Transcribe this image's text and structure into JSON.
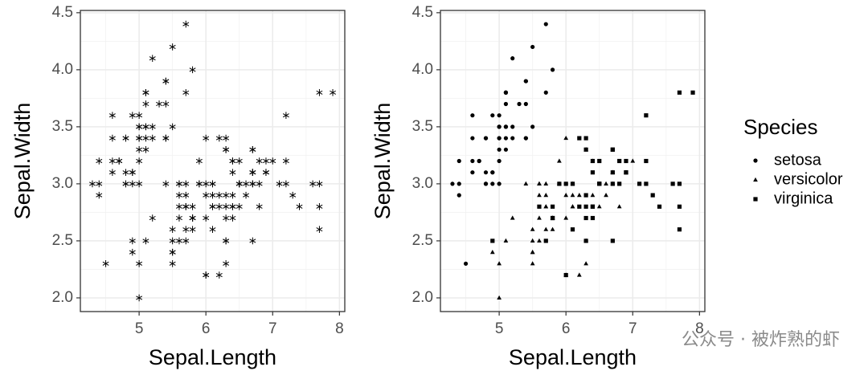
{
  "chart_data": [
    {
      "type": "scatter",
      "x_label": "Sepal.Length",
      "y_label": "Sepal.Width",
      "xlim": [
        4.12,
        8.08
      ],
      "ylim": [
        1.88,
        4.52
      ],
      "xticks": [
        5,
        6,
        7,
        8
      ],
      "yticks": [
        {
          "value": 2,
          "label": "2.0"
        },
        2.5,
        {
          "value": 3,
          "label": "3.0"
        },
        3.5,
        {
          "value": 4,
          "label": "4.0"
        },
        4.5
      ],
      "grid": true,
      "series": [
        {
          "color": "#000000",
          "shape": "asterisk",
          "x": [
            5.1,
            4.9,
            4.7,
            4.6,
            5.0,
            5.4,
            4.6,
            5.0,
            4.4,
            4.9,
            5.4,
            4.8,
            4.8,
            4.3,
            5.8,
            5.7,
            5.4,
            5.1,
            5.7,
            5.1,
            5.4,
            5.1,
            4.6,
            5.1,
            4.8,
            5.0,
            5.0,
            5.2,
            5.2,
            4.7,
            4.8,
            5.4,
            5.2,
            5.5,
            4.9,
            5.0,
            5.5,
            4.9,
            4.4,
            5.1,
            5.0,
            4.5,
            4.4,
            5.0,
            5.1,
            4.8,
            5.1,
            4.6,
            5.3,
            5.0,
            7.0,
            6.4,
            6.9,
            5.5,
            6.5,
            5.7,
            6.3,
            4.9,
            6.6,
            5.2,
            5.0,
            5.9,
            6.0,
            6.1,
            5.6,
            6.7,
            5.6,
            5.8,
            6.2,
            5.6,
            5.9,
            6.1,
            6.3,
            6.1,
            6.4,
            6.6,
            6.8,
            6.7,
            6.0,
            5.7,
            5.5,
            5.5,
            5.8,
            6.0,
            5.4,
            6.0,
            6.7,
            6.3,
            5.6,
            5.5,
            5.5,
            6.1,
            5.8,
            5.0,
            5.6,
            5.7,
            5.7,
            6.2,
            5.1,
            5.7,
            6.3,
            5.8,
            7.1,
            6.3,
            6.5,
            7.6,
            4.9,
            7.3,
            6.7,
            7.2,
            6.5,
            6.4,
            6.8,
            5.7,
            5.8,
            6.4,
            6.5,
            7.7,
            7.7,
            6.0,
            6.9,
            5.6,
            7.7,
            6.3,
            6.7,
            7.2,
            6.2,
            6.1,
            6.4,
            7.2,
            7.4,
            7.9,
            6.4,
            6.3,
            6.1,
            7.7,
            6.3,
            6.4,
            6.0,
            6.9,
            6.7,
            6.9,
            5.8,
            6.8,
            6.7,
            6.7,
            6.3,
            6.5,
            6.2,
            5.9
          ],
          "values": [
            3.5,
            3.0,
            3.2,
            3.1,
            3.6,
            3.9,
            3.4,
            3.4,
            2.9,
            3.1,
            3.7,
            3.4,
            3.0,
            3.0,
            4.0,
            4.4,
            3.9,
            3.5,
            3.8,
            3.8,
            3.4,
            3.7,
            3.6,
            3.3,
            3.4,
            3.0,
            3.4,
            3.5,
            3.4,
            3.2,
            3.1,
            3.4,
            4.1,
            4.2,
            3.1,
            3.2,
            3.5,
            3.6,
            3.0,
            3.4,
            3.5,
            2.3,
            3.2,
            3.5,
            3.8,
            3.0,
            3.8,
            3.2,
            3.7,
            3.3,
            3.2,
            3.2,
            3.1,
            2.3,
            2.8,
            2.8,
            3.3,
            2.4,
            2.9,
            2.7,
            2.0,
            3.0,
            2.2,
            2.9,
            2.9,
            3.1,
            3.0,
            2.7,
            2.2,
            2.5,
            3.2,
            2.8,
            2.5,
            2.8,
            2.9,
            3.0,
            2.8,
            3.0,
            2.9,
            2.6,
            2.4,
            2.4,
            2.7,
            2.7,
            3.0,
            3.4,
            3.1,
            2.3,
            3.0,
            2.5,
            2.6,
            3.0,
            2.6,
            2.3,
            2.7,
            3.0,
            2.9,
            2.9,
            2.5,
            2.8,
            3.3,
            2.7,
            3.0,
            2.9,
            3.0,
            3.0,
            2.5,
            2.9,
            2.5,
            3.6,
            3.2,
            2.7,
            3.0,
            2.5,
            2.8,
            3.2,
            3.0,
            3.8,
            2.6,
            2.2,
            3.2,
            2.8,
            2.8,
            2.7,
            3.3,
            3.2,
            2.8,
            3.0,
            2.8,
            3.0,
            2.8,
            3.8,
            2.8,
            2.8,
            2.6,
            3.0,
            3.4,
            3.1,
            3.0,
            3.1,
            3.1,
            3.1,
            2.7,
            3.2,
            3.3,
            3.0,
            2.5,
            3.0,
            3.4,
            3.0
          ]
        }
      ]
    },
    {
      "type": "scatter",
      "x_label": "Sepal.Length",
      "y_label": "Sepal.Width",
      "xlim": [
        4.12,
        8.08
      ],
      "ylim": [
        1.88,
        4.52
      ],
      "xticks": [
        5,
        6,
        7,
        8
      ],
      "yticks": [
        {
          "value": 2,
          "label": "2.0"
        },
        2.5,
        {
          "value": 3,
          "label": "3.0"
        },
        3.5,
        {
          "value": 4,
          "label": "4.0"
        },
        4.5
      ],
      "grid": true,
      "legend_title": "Species",
      "legend_position": "right",
      "series": [
        {
          "name": "setosa",
          "color": "#000000",
          "shape": "circle",
          "x": [
            5.1,
            4.9,
            4.7,
            4.6,
            5.0,
            5.4,
            4.6,
            5.0,
            4.4,
            4.9,
            5.4,
            4.8,
            4.8,
            4.3,
            5.8,
            5.7,
            5.4,
            5.1,
            5.7,
            5.1,
            5.4,
            5.1,
            4.6,
            5.1,
            4.8,
            5.0,
            5.0,
            5.2,
            5.2,
            4.7,
            4.8,
            5.4,
            5.2,
            5.5,
            4.9,
            5.0,
            5.5,
            4.9,
            4.4,
            5.1,
            5.0,
            4.5,
            4.4,
            5.0,
            5.1,
            4.8,
            5.1,
            4.6,
            5.3,
            5.0
          ],
          "values": [
            3.5,
            3.0,
            3.2,
            3.1,
            3.6,
            3.9,
            3.4,
            3.4,
            2.9,
            3.1,
            3.7,
            3.4,
            3.0,
            3.0,
            4.0,
            4.4,
            3.9,
            3.5,
            3.8,
            3.8,
            3.4,
            3.7,
            3.6,
            3.3,
            3.4,
            3.0,
            3.4,
            3.5,
            3.4,
            3.2,
            3.1,
            3.4,
            4.1,
            4.2,
            3.1,
            3.2,
            3.5,
            3.6,
            3.0,
            3.4,
            3.5,
            2.3,
            3.2,
            3.5,
            3.8,
            3.0,
            3.8,
            3.2,
            3.7,
            3.3
          ]
        },
        {
          "name": "versicolor",
          "color": "#000000",
          "shape": "triangle",
          "x": [
            7.0,
            6.4,
            6.9,
            5.5,
            6.5,
            5.7,
            6.3,
            4.9,
            6.6,
            5.2,
            5.0,
            5.9,
            6.0,
            6.1,
            5.6,
            6.7,
            5.6,
            5.8,
            6.2,
            5.6,
            5.9,
            6.1,
            6.3,
            6.1,
            6.4,
            6.6,
            6.8,
            6.7,
            6.0,
            5.7,
            5.5,
            5.5,
            5.8,
            6.0,
            5.4,
            6.0,
            6.7,
            6.3,
            5.6,
            5.5,
            5.5,
            6.1,
            5.8,
            5.0,
            5.6,
            5.7,
            5.7,
            6.2,
            5.1,
            5.7
          ],
          "values": [
            3.2,
            3.2,
            3.1,
            2.3,
            2.8,
            2.8,
            3.3,
            2.4,
            2.9,
            2.7,
            2.0,
            3.0,
            2.2,
            2.9,
            2.9,
            3.1,
            3.0,
            2.7,
            2.2,
            2.5,
            3.2,
            2.8,
            2.5,
            2.8,
            2.9,
            3.0,
            2.8,
            3.0,
            2.9,
            2.6,
            2.4,
            2.4,
            2.7,
            2.7,
            3.0,
            3.4,
            3.1,
            2.3,
            3.0,
            2.5,
            2.6,
            3.0,
            2.6,
            2.3,
            2.7,
            3.0,
            2.9,
            2.9,
            2.5,
            2.8
          ]
        },
        {
          "name": "virginica",
          "color": "#000000",
          "shape": "square",
          "x": [
            6.3,
            5.8,
            7.1,
            6.3,
            6.5,
            7.6,
            4.9,
            7.3,
            6.7,
            7.2,
            6.5,
            6.4,
            6.8,
            5.7,
            5.8,
            6.4,
            6.5,
            7.7,
            7.7,
            6.0,
            6.9,
            5.6,
            7.7,
            6.3,
            6.7,
            7.2,
            6.2,
            6.1,
            6.4,
            7.2,
            7.4,
            7.9,
            6.4,
            6.3,
            6.1,
            7.7,
            6.3,
            6.4,
            6.0,
            6.9,
            6.7,
            6.9,
            5.8,
            6.8,
            6.7,
            6.7,
            6.3,
            6.5,
            6.2,
            5.9
          ],
          "values": [
            3.3,
            2.7,
            3.0,
            2.9,
            3.0,
            3.0,
            2.5,
            2.9,
            2.5,
            3.6,
            3.2,
            2.7,
            3.0,
            2.5,
            2.8,
            3.2,
            3.0,
            3.8,
            2.6,
            2.2,
            3.2,
            2.8,
            2.8,
            2.7,
            3.3,
            3.2,
            2.8,
            3.0,
            2.8,
            3.0,
            2.8,
            3.8,
            2.8,
            2.8,
            2.6,
            3.0,
            3.4,
            3.1,
            3.0,
            3.1,
            3.1,
            3.1,
            2.7,
            3.2,
            3.3,
            3.0,
            2.5,
            3.0,
            3.4,
            3.0
          ]
        }
      ]
    }
  ],
  "watermark": "公众号 · 被炸熟的虾"
}
